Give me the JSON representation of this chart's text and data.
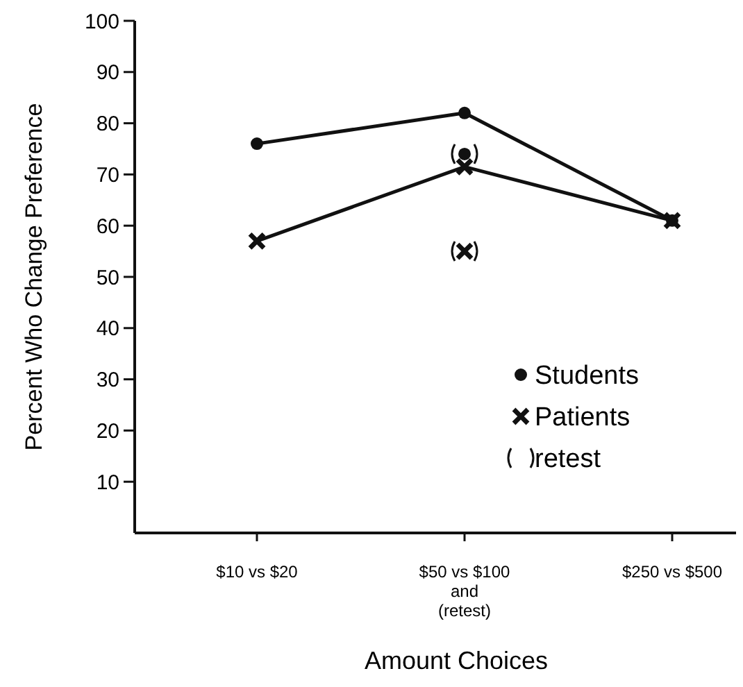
{
  "chart_data": {
    "type": "line",
    "xlabel": "Amount Choices",
    "ylabel": "Percent Who Change Preference",
    "categories": [
      "$10 vs $20",
      "$50 vs $100\nand\n(retest)",
      "$250 vs $500"
    ],
    "series": [
      {
        "name": "Students",
        "color": "#111111",
        "values": [
          76,
          82,
          61
        ],
        "marker": "circle"
      },
      {
        "name": "Patients",
        "color": "#111111",
        "values": [
          57,
          71.5,
          61
        ],
        "marker": "cross"
      },
      {
        "name": "retest",
        "type": "scatter",
        "color": "#111111",
        "values": [
          null,
          74,
          null
        ],
        "marker": "circle"
      },
      {
        "type": "scatter",
        "color": "#111111",
        "values": [
          null,
          55,
          null
        ],
        "marker": "cross"
      }
    ],
    "ylim": [
      0,
      100
    ],
    "yticks": [
      10,
      20,
      30,
      40,
      50,
      60,
      70,
      80,
      90,
      100
    ],
    "legend": "right",
    "grid": false
  }
}
